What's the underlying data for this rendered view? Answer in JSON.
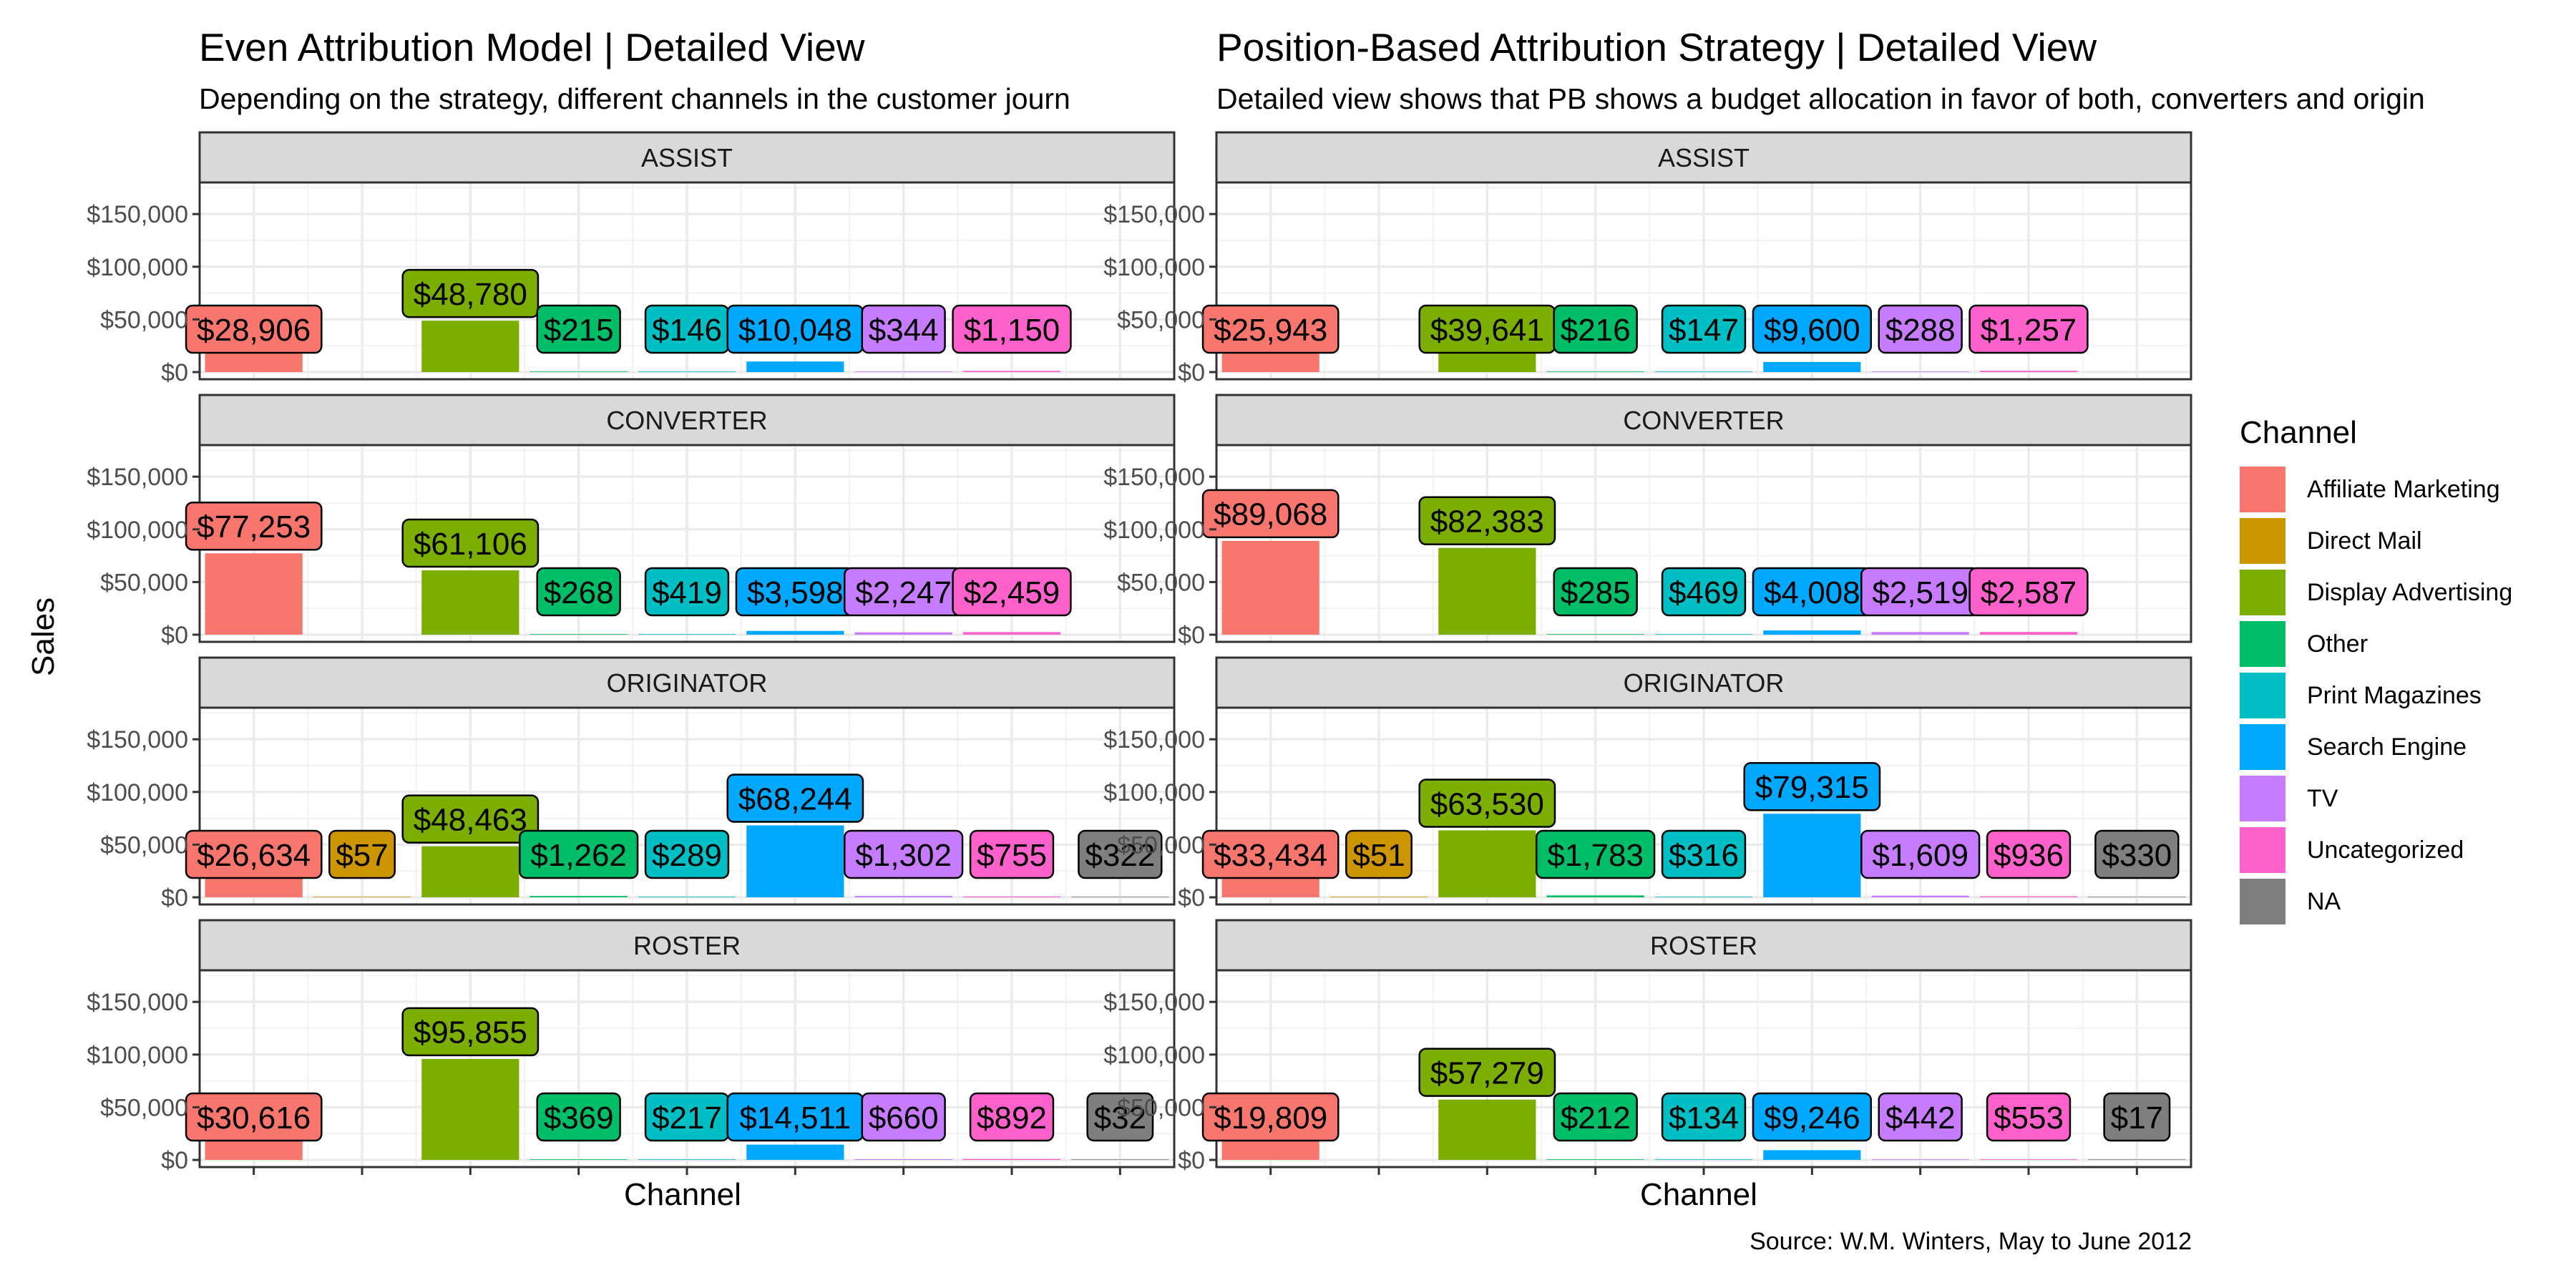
{
  "chart_data": {
    "type": "bar",
    "ylabel": "Sales",
    "xlabel": "Channel",
    "ylim": [
      0,
      180000
    ],
    "y_ticks": [
      0,
      50000,
      100000,
      150000
    ],
    "y_tick_labels": [
      "$0",
      "$50,000",
      "$100,000",
      "$150,000"
    ],
    "grid": true,
    "legend": {
      "title": "Channel",
      "placement": "right",
      "items": [
        {
          "name": "Affiliate Marketing",
          "color": "#F8766D"
        },
        {
          "name": "Direct Mail",
          "color": "#CD9600"
        },
        {
          "name": "Display Advertising",
          "color": "#7CAE00"
        },
        {
          "name": "Other",
          "color": "#00BE67"
        },
        {
          "name": "Print Magazines",
          "color": "#00BFC4"
        },
        {
          "name": "Search Engine",
          "color": "#00A9FF"
        },
        {
          "name": "TV",
          "color": "#C77CFF"
        },
        {
          "name": "Uncategorized",
          "color": "#FF61CC"
        },
        {
          "name": "NA",
          "color": "#7F7F7F"
        }
      ]
    },
    "caption": "Source: W.M. Winters, May to June 2012",
    "charts": [
      {
        "title": "Even Attribution Model | Detailed View",
        "subtitle": "Depending on the strategy, different channels in the customer journ",
        "facets": [
          {
            "name": "ASSIST",
            "values": [
              28906,
              null,
              48780,
              215,
              146,
              10048,
              344,
              1150,
              null
            ],
            "labels": [
              "$28,906",
              "",
              "$48,780",
              "$215",
              "$146",
              "$10,048",
              "$344",
              "$1,150",
              ""
            ]
          },
          {
            "name": "CONVERTER",
            "values": [
              77253,
              null,
              61106,
              268,
              419,
              3598,
              2247,
              2459,
              null
            ],
            "labels": [
              "$77,253",
              "",
              "$61,106",
              "$268",
              "$419",
              "$3,598",
              "$2,247",
              "$2,459",
              ""
            ]
          },
          {
            "name": "ORIGINATOR",
            "values": [
              26634,
              57,
              48463,
              1262,
              289,
              68244,
              1302,
              755,
              322
            ],
            "labels": [
              "$26,634",
              "$57",
              "$48,463",
              "$1,262",
              "$289",
              "$68,244",
              "$1,302",
              "$755",
              "$322"
            ]
          },
          {
            "name": "ROSTER",
            "values": [
              30616,
              null,
              95855,
              369,
              217,
              14511,
              660,
              892,
              32
            ],
            "labels": [
              "$30,616",
              "",
              "$95,855",
              "$369",
              "$217",
              "$14,511",
              "$660",
              "$892",
              "$32"
            ]
          }
        ]
      },
      {
        "title": "Position-Based Attribution Strategy | Detailed View",
        "subtitle": "Detailed view shows that PB shows a budget allocation in favor of both, converters and origin",
        "facets": [
          {
            "name": "ASSIST",
            "values": [
              25943,
              null,
              39641,
              216,
              147,
              9600,
              288,
              1257,
              null
            ],
            "labels": [
              "$25,943",
              "",
              "$39,641",
              "$216",
              "$147",
              "$9,600",
              "$288",
              "$1,257",
              ""
            ]
          },
          {
            "name": "CONVERTER",
            "values": [
              89068,
              null,
              82383,
              285,
              469,
              4008,
              2519,
              2587,
              null
            ],
            "labels": [
              "$89,068",
              "",
              "$82,383",
              "$285",
              "$469",
              "$4,008",
              "$2,519",
              "$2,587",
              ""
            ]
          },
          {
            "name": "ORIGINATOR",
            "values": [
              33434,
              51,
              63530,
              1783,
              316,
              79315,
              1609,
              936,
              330
            ],
            "labels": [
              "$33,434",
              "$51",
              "$63,530",
              "$1,783",
              "$316",
              "$79,315",
              "$1,609",
              "$936",
              "$330"
            ]
          },
          {
            "name": "ROSTER",
            "values": [
              19809,
              null,
              57279,
              212,
              134,
              9246,
              442,
              553,
              17
            ],
            "labels": [
              "$19,809",
              "",
              "$57,279",
              "$212",
              "$134",
              "$9,246",
              "$442",
              "$553",
              "$17"
            ]
          }
        ]
      }
    ]
  }
}
